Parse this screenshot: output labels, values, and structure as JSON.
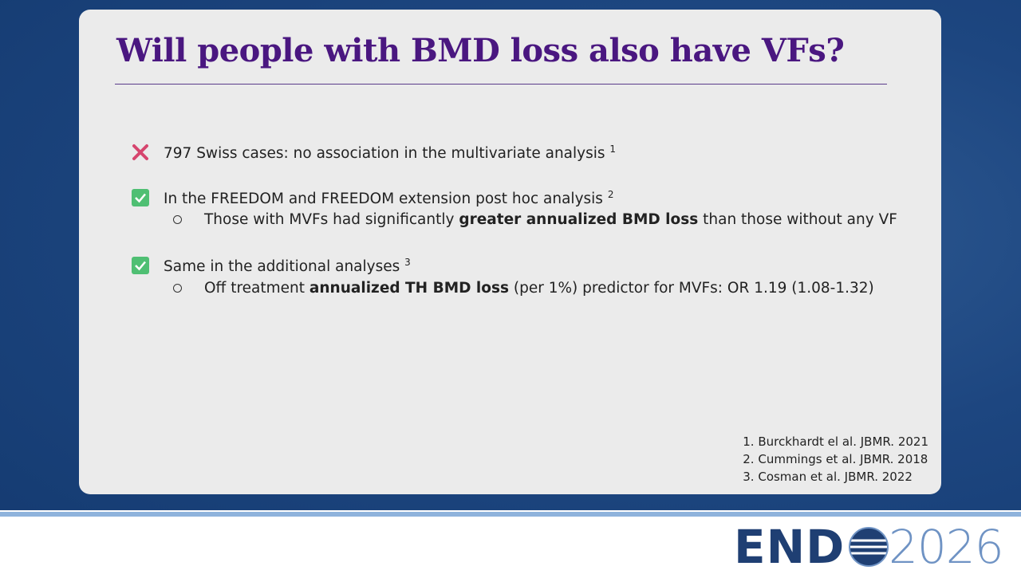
{
  "title": "Will people with BMD loss also have VFs?",
  "bullets": [
    {
      "text": "797 Swiss cases: no association in the multivariate analysis",
      "ref": "1"
    },
    {
      "text": "In the FREEDOM and FREEDOM extension post hoc analysis",
      "ref": "2",
      "sub": [
        "Those with MVFs had significantly ",
        "greater annualized BMD loss",
        " than those without any VF"
      ]
    },
    {
      "text": "Same in the additional analyses",
      "ref": "3",
      "sub": [
        "Off treatment ",
        "annualized TH BMD loss",
        " (per 1%) predictor for MVFs: OR 1.19 (1.08-1.32)"
      ]
    }
  ],
  "references": [
    "1. Burckhardt el al. JBMR. 2021",
    "2. Cummings et al. JBMR. 2018",
    "3. Cosman et al. JBMR. 2022"
  ],
  "logo": {
    "left": "END",
    "right": "2026"
  }
}
